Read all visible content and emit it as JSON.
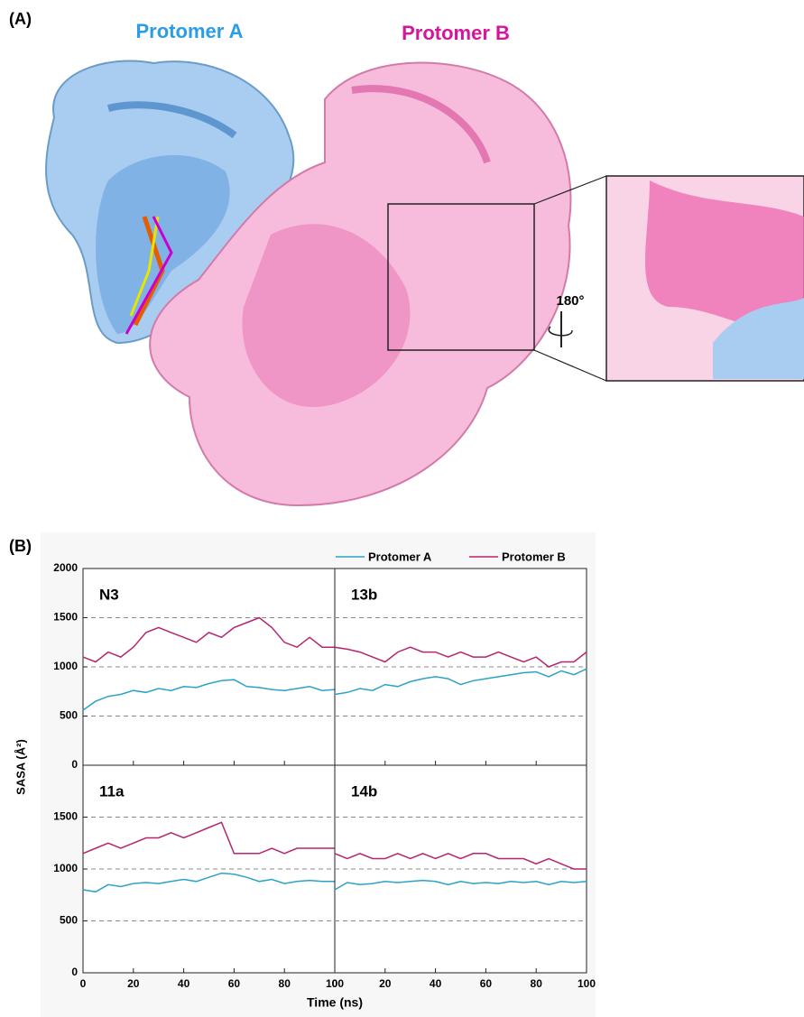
{
  "panel_a": {
    "label": "(A)",
    "protomer_a": "Protomer A",
    "protomer_b": "Protomer B",
    "rotation": "180°"
  },
  "chart_data": {
    "type": "line",
    "panel_label": "(B)",
    "xlabel": "Time (ns)",
    "ylabel": "SASA (Å²)",
    "legend": [
      {
        "name": "Protomer A",
        "color": "#2ba3c9"
      },
      {
        "name": "Protomer B",
        "color": "#b5256f"
      }
    ],
    "x": [
      0,
      5,
      10,
      15,
      20,
      25,
      30,
      35,
      40,
      45,
      50,
      55,
      60,
      65,
      70,
      75,
      80,
      85,
      90,
      95,
      100
    ],
    "xlim": [
      0,
      100
    ],
    "xticks": [
      0,
      20,
      40,
      60,
      80,
      100
    ],
    "yaxes": [
      {
        "ylim": [
          0,
          2000
        ],
        "yticks": [
          0,
          500,
          1000,
          1500,
          2000
        ]
      },
      {
        "ylim": [
          0,
          2000
        ],
        "yticks": [
          0,
          500,
          1000,
          1500
        ]
      }
    ],
    "gridlines": [
      500,
      1000,
      1500
    ],
    "panels": [
      {
        "label": "N3",
        "series": [
          {
            "values": [
              560,
              650,
              700,
              720,
              760,
              740,
              780,
              760,
              800,
              790,
              830,
              860,
              870,
              800,
              790,
              770,
              760,
              780,
              800,
              760,
              770
            ]
          },
          {
            "values": [
              1100,
              1050,
              1150,
              1100,
              1200,
              1350,
              1400,
              1350,
              1300,
              1250,
              1350,
              1300,
              1400,
              1450,
              1500,
              1400,
              1250,
              1200,
              1300,
              1200,
              1200
            ]
          }
        ]
      },
      {
        "label": "13b",
        "series": [
          {
            "values": [
              720,
              740,
              780,
              760,
              820,
              800,
              850,
              880,
              900,
              880,
              820,
              860,
              880,
              900,
              920,
              940,
              950,
              900,
              960,
              920,
              980
            ]
          },
          {
            "values": [
              1200,
              1180,
              1150,
              1100,
              1050,
              1150,
              1200,
              1150,
              1150,
              1100,
              1150,
              1100,
              1100,
              1150,
              1100,
              1050,
              1100,
              1000,
              1050,
              1050,
              1150
            ]
          }
        ]
      },
      {
        "label": "11a",
        "series": [
          {
            "values": [
              800,
              780,
              850,
              830,
              860,
              870,
              860,
              880,
              900,
              880,
              920,
              960,
              950,
              920,
              880,
              900,
              860,
              880,
              890,
              880,
              880
            ]
          },
          {
            "values": [
              1150,
              1200,
              1250,
              1200,
              1250,
              1300,
              1300,
              1350,
              1300,
              1350,
              1400,
              1450,
              1150,
              1150,
              1150,
              1200,
              1150,
              1200,
              1200,
              1200,
              1200
            ]
          }
        ]
      },
      {
        "label": "14b",
        "series": [
          {
            "values": [
              800,
              870,
              850,
              860,
              880,
              870,
              880,
              890,
              880,
              850,
              880,
              860,
              870,
              860,
              880,
              870,
              880,
              850,
              880,
              870,
              880
            ]
          },
          {
            "values": [
              1150,
              1100,
              1150,
              1100,
              1100,
              1150,
              1100,
              1150,
              1100,
              1150,
              1100,
              1150,
              1150,
              1100,
              1100,
              1100,
              1050,
              1100,
              1050,
              1000,
              1000
            ]
          }
        ]
      }
    ]
  }
}
